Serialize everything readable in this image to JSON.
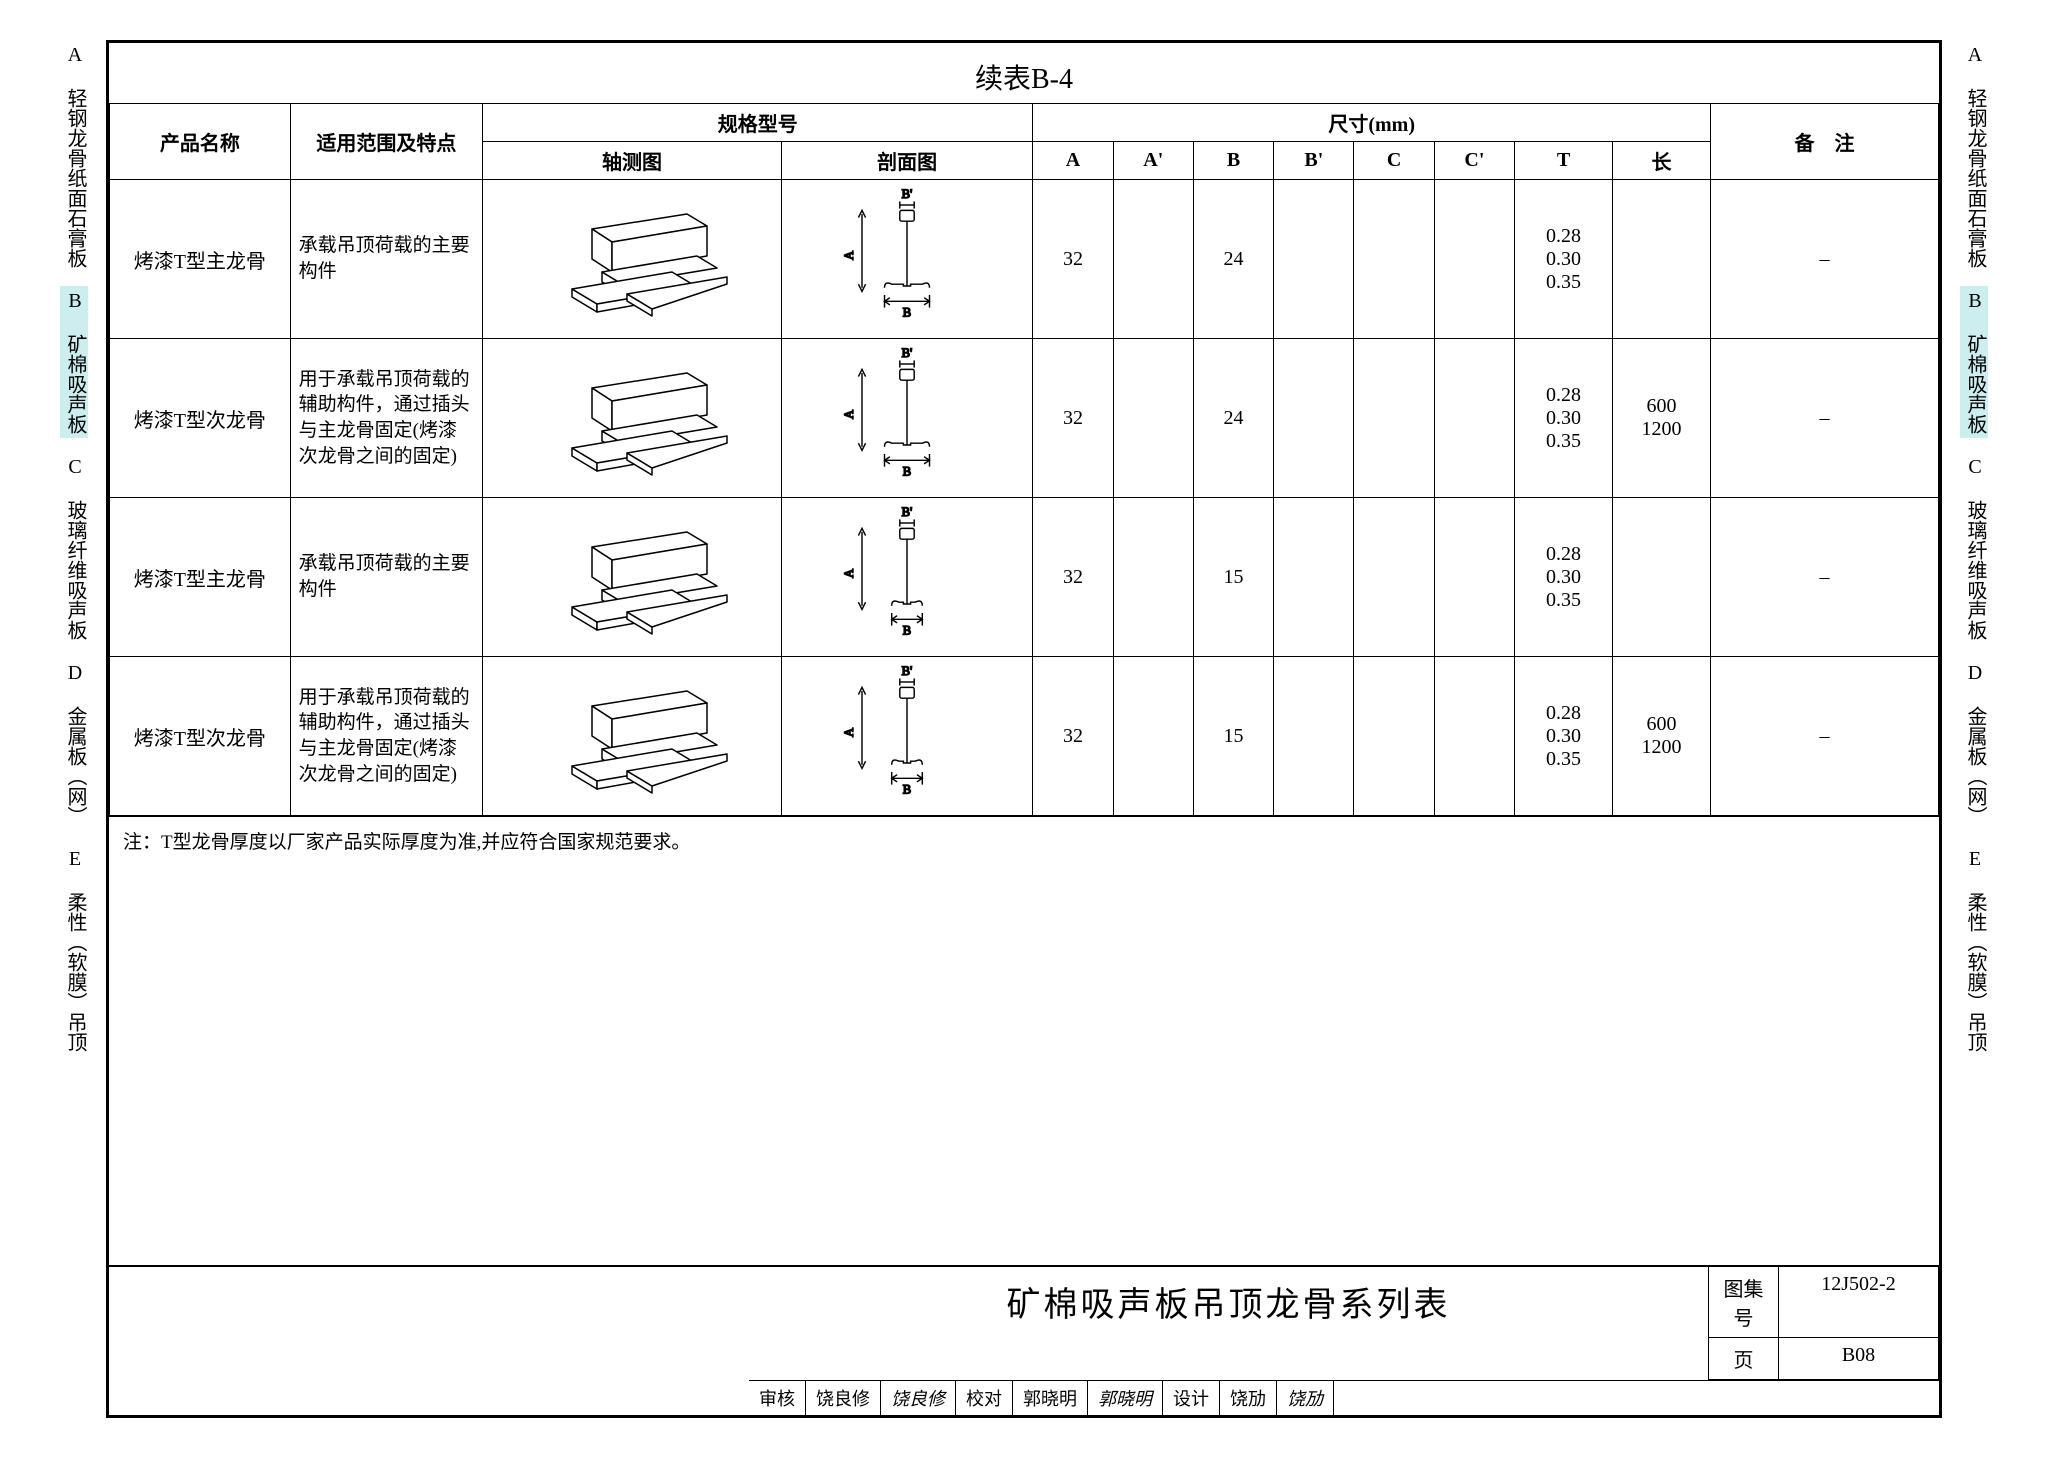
{
  "title": "续表B-4",
  "side_tabs": [
    {
      "label": "A 轻钢龙骨纸面石膏板",
      "active": false
    },
    {
      "label": "B 矿棉吸声板",
      "active": true
    },
    {
      "label": "C 玻璃纤维吸声板",
      "active": false
    },
    {
      "label": "D 金属板（网）",
      "active": false
    },
    {
      "label": "E 柔性（软膜）吊顶",
      "active": false
    }
  ],
  "columns": {
    "c1": "产品名称",
    "c2": "适用范围及特点",
    "c3": "规格型号",
    "c3a": "轴测图",
    "c3b": "剖面图",
    "c4": "尺寸(mm)",
    "dimA": "A",
    "dimAp": "A'",
    "dimB": "B",
    "dimBp": "B'",
    "dimC": "C",
    "dimCp": "C'",
    "dimT": "T",
    "dimL": "长",
    "c5": "备　注"
  },
  "rows": [
    {
      "name": "烤漆T型主龙骨",
      "desc": "承载吊顶荷载的主要构件",
      "A": "32",
      "Ap": "",
      "B": "24",
      "Bp": "",
      "C": "",
      "Cp": "",
      "T": "0.28\n0.30\n0.35",
      "L": "",
      "remark": "–",
      "section_B_width": 50
    },
    {
      "name": "烤漆T型次龙骨",
      "desc": "用于承载吊顶荷载的辅助构件，通过插头与主龙骨固定(烤漆次龙骨之间的固定)",
      "A": "32",
      "Ap": "",
      "B": "24",
      "Bp": "",
      "C": "",
      "Cp": "",
      "T": "0.28\n0.30\n0.35",
      "L": "600\n1200",
      "remark": "–",
      "section_B_width": 50
    },
    {
      "name": "烤漆T型主龙骨",
      "desc": "承载吊顶荷载的主要构件",
      "A": "32",
      "Ap": "",
      "B": "15",
      "Bp": "",
      "C": "",
      "Cp": "",
      "T": "0.28\n0.30\n0.35",
      "L": "",
      "remark": "–",
      "section_B_width": 34
    },
    {
      "name": "烤漆T型次龙骨",
      "desc": "用于承载吊顶荷载的辅助构件，通过插头与主龙骨固定(烤漆次龙骨之间的固定)",
      "A": "32",
      "Ap": "",
      "B": "15",
      "Bp": "",
      "C": "",
      "Cp": "",
      "T": "0.28\n0.30\n0.35",
      "L": "600\n1200",
      "remark": "–",
      "section_B_width": 34
    }
  ],
  "note": "注：T型龙骨厚度以厂家产品实际厚度为准,并应符合国家规范要求。",
  "titleblock": {
    "main": "矿棉吸声板吊顶龙骨系列表",
    "set_label": "图集号",
    "set_value": "12J502-2",
    "page_label": "页",
    "page_value": "B08"
  },
  "signrow": {
    "l1": "审核",
    "v1": "饶良修",
    "s1": "饶良修",
    "l2": "校对",
    "v2": "郭晓明",
    "s2": "郭晓明",
    "l3": "设计",
    "v3": "饶劢",
    "s3": "饶劢"
  },
  "svg": {
    "iso_stroke": "#000000",
    "iso_fill": "#ffffff",
    "annot_stroke": "#000000",
    "annot_font": 14
  }
}
